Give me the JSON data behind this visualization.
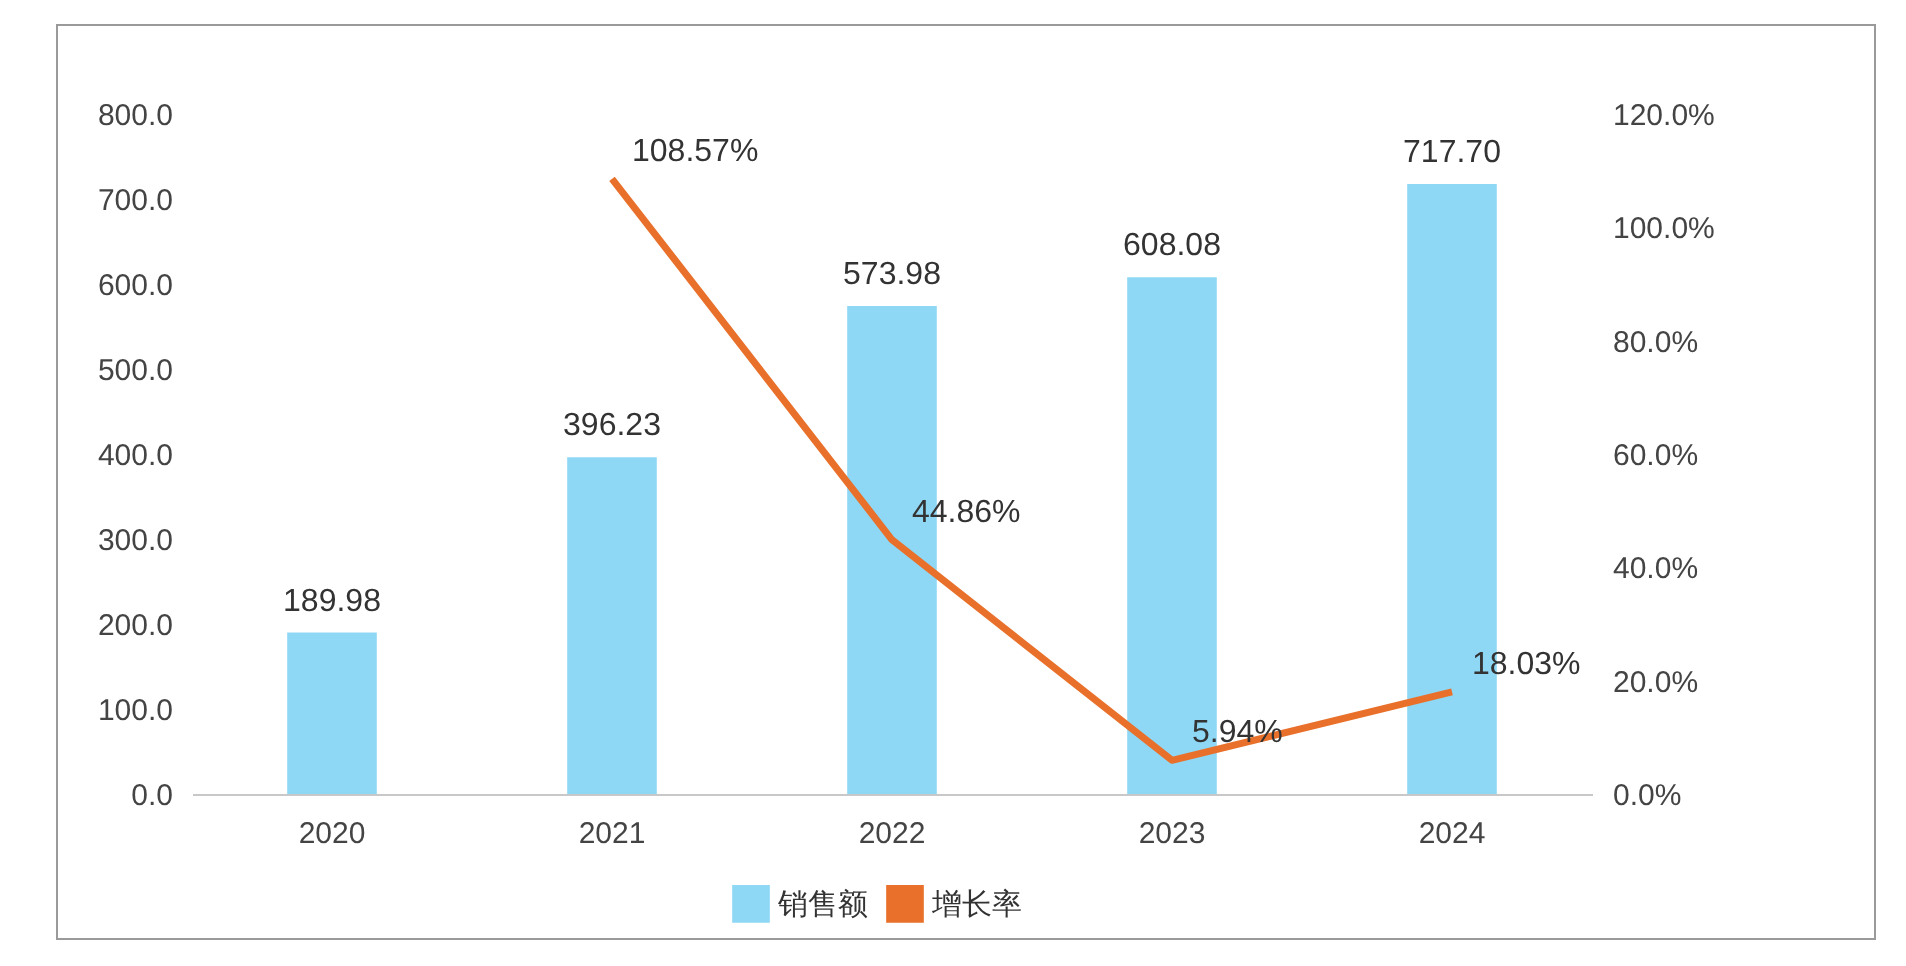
{
  "chart_data": {
    "type": "bar",
    "categories": [
      "2020",
      "2021",
      "2022",
      "2023",
      "2024"
    ],
    "series": [
      {
        "name": "销售额",
        "color": "#8fd8f5",
        "values": [
          189.98,
          396.23,
          573.98,
          608.08,
          717.7
        ],
        "value_labels": [
          "189.98",
          "396.23",
          "573.98",
          "608.08",
          "717.70"
        ]
      },
      {
        "name": "增长率",
        "type": "line",
        "axis": "y2",
        "color": "#e8702a",
        "values": [
          null,
          108.57,
          44.86,
          5.94,
          18.03
        ],
        "value_labels": [
          null,
          "108.57%",
          "44.86%",
          "5.94%",
          "18.03%"
        ]
      }
    ],
    "ylim": [
      0,
      800
    ],
    "yticks": [
      {
        "value": 0,
        "label": "0.0"
      },
      {
        "value": 100,
        "label": "100.0"
      },
      {
        "value": 200,
        "label": "200.0"
      },
      {
        "value": 300,
        "label": "300.0"
      },
      {
        "value": 400,
        "label": "400.0"
      },
      {
        "value": 500,
        "label": "500.0"
      },
      {
        "value": 600,
        "label": "600.0"
      },
      {
        "value": 700,
        "label": "700.0"
      },
      {
        "value": 800,
        "label": "800.0"
      }
    ],
    "y2lim": [
      0,
      120
    ],
    "y2ticks": [
      {
        "value": 0,
        "label": "0.0%"
      },
      {
        "value": 20,
        "label": "20.0%"
      },
      {
        "value": 40,
        "label": "40.0%"
      },
      {
        "value": 60,
        "label": "60.0%"
      },
      {
        "value": 80,
        "label": "80.0%"
      },
      {
        "value": 100,
        "label": "100.0%"
      },
      {
        "value": 120,
        "label": "120.0%"
      }
    ],
    "legend": "bottom",
    "grid": false,
    "marker": "none",
    "line_style": "solid"
  }
}
